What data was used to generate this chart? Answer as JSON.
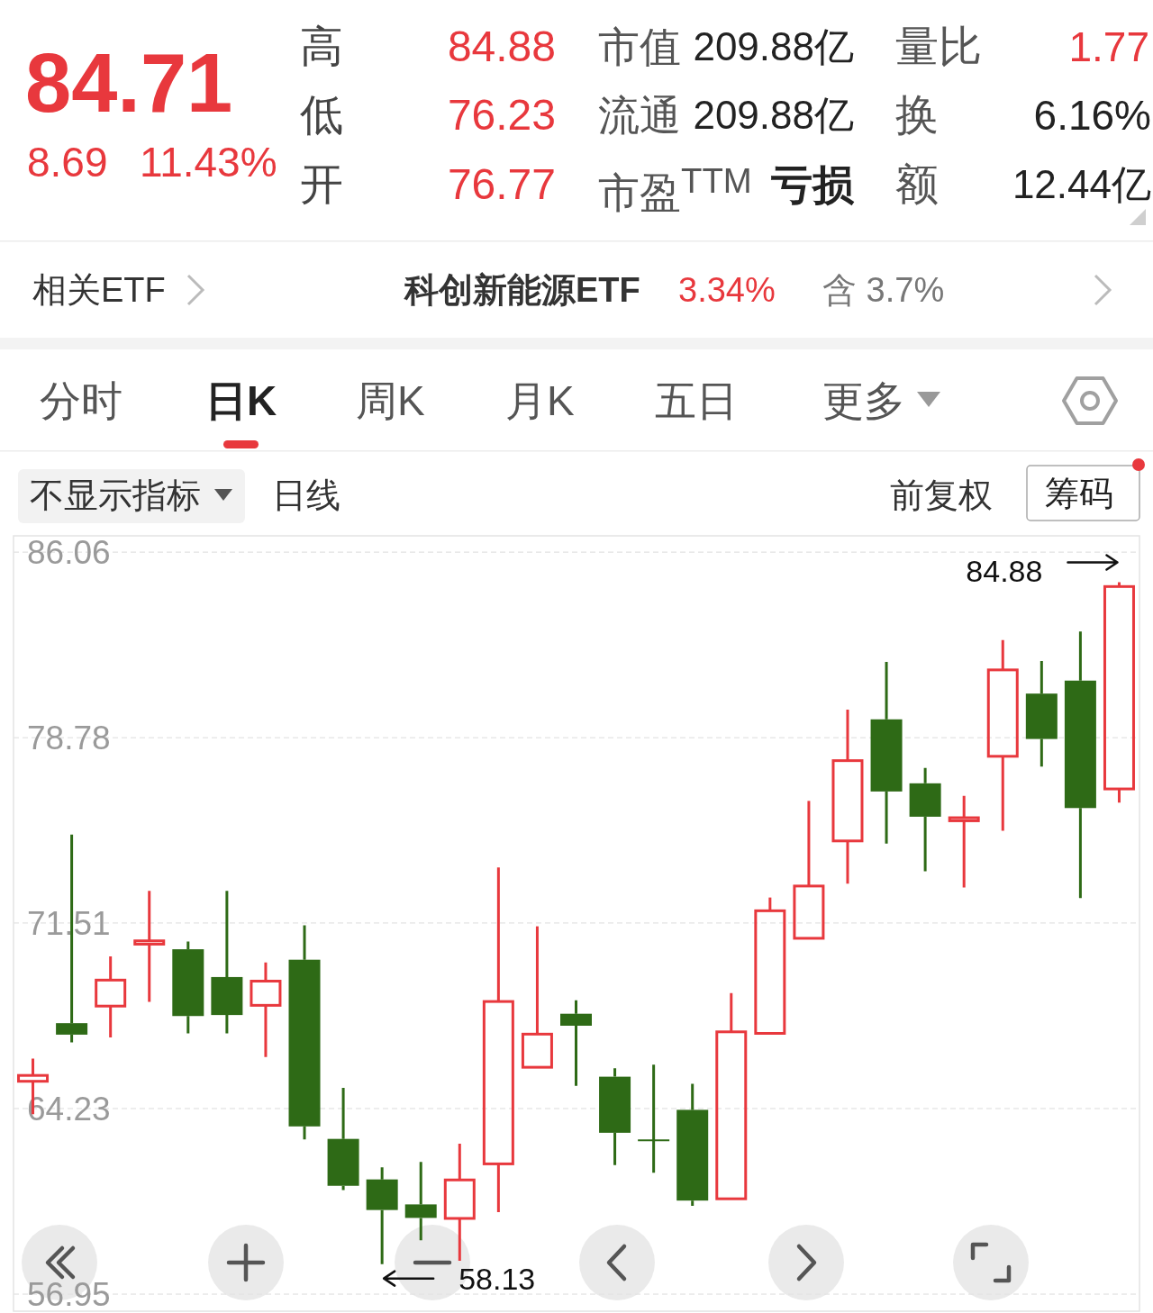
{
  "chart_data": [
    {
      "type": "other",
      "annotations": [
        "84.71",
        "高",
        "84.88",
        "市值",
        "209.88亿",
        "量比",
        "1.77",
        "低",
        "76.23",
        "流通",
        "209.88亿",
        "换",
        "6.16%",
        "8.69",
        "11.43%",
        "开",
        "76.77",
        "市盈$^{TTM}$",
        "亏损",
        "额",
        "12.44亿",
        "相关ETF",
        "科创新能源ETF",
        "3.34%",
        "含 3.7%",
        "分时",
        "日K",
        "周K",
        "月K",
        "五日",
        "更多",
        "不显示指标",
        "日线",
        "前复权",
        "筹码"
      ]
    },
    {
      "type": "candlestick",
      "categories": [
        null,
        null,
        null,
        null,
        null,
        null,
        null,
        null,
        null,
        null,
        null,
        null,
        null,
        null,
        null,
        null,
        null,
        null,
        null,
        null,
        null,
        null,
        null,
        null,
        null,
        null,
        null,
        null,
        null
      ],
      "ohlc": [
        [
          65.3,
          66.19,
          64.01,
          65.53
        ],
        [
          67.58,
          74.98,
          66.83,
          67.13
        ],
        [
          68.25,
          70.2,
          67.02,
          69.27
        ],
        [
          70.68,
          72.77,
          68.42,
          70.81
        ],
        [
          70.48,
          70.78,
          67.18,
          67.86
        ],
        [
          69.39,
          72.77,
          67.18,
          67.9
        ],
        [
          68.28,
          69.96,
          66.25,
          69.23
        ],
        [
          70.07,
          71.42,
          63.02,
          63.53
        ],
        [
          63.04,
          65.04,
          61.03,
          61.2
        ],
        [
          61.45,
          61.92,
          58.13,
          60.25
        ],
        [
          60.47,
          62.14,
          59.06,
          59.94
        ],
        [
          59.92,
          62.85,
          58.26,
          61.43
        ],
        [
          62.06,
          73.69,
          60.17,
          68.43
        ],
        [
          65.85,
          71.38,
          65.85,
          67.15
        ],
        [
          67.95,
          68.48,
          65.12,
          67.48
        ],
        [
          65.48,
          65.81,
          62.01,
          63.28
        ],
        [
          62.98,
          65.95,
          61.71,
          62.98
        ],
        [
          64.18,
          65.2,
          60.41,
          60.62
        ],
        [
          60.69,
          68.76,
          60.69,
          67.24
        ],
        [
          67.18,
          72.51,
          67.18,
          71.99
        ],
        [
          70.91,
          76.3,
          70.91,
          72.96
        ],
        [
          74.73,
          79.88,
          73.05,
          77.88
        ],
        [
          79.5,
          81.75,
          74.63,
          76.67
        ],
        [
          76.99,
          77.59,
          73.54,
          75.68
        ],
        [
          75.52,
          76.5,
          72.9,
          75.64
        ],
        [
          78.05,
          82.61,
          75.13,
          81.44
        ],
        [
          80.51,
          81.79,
          77.65,
          78.73
        ],
        [
          81.02,
          82.95,
          72.49,
          76.02
        ],
        [
          76.77,
          84.88,
          76.23,
          84.71
        ]
      ],
      "colors": [
        "#e8383d",
        "#2e6a16",
        "#e8383d",
        "#e8383d",
        "#2e6a16",
        "#2e6a16",
        "#e8383d",
        "#2e6a16",
        "#2e6a16",
        "#2e6a16",
        "#2e6a16",
        "#e8383d",
        "#e8383d",
        "#e8383d",
        "#2e6a16",
        "#2e6a16",
        "#2e6a16",
        "#2e6a16",
        "#e8383d",
        "#e8383d",
        "#e8383d",
        "#e8383d",
        "#2e6a16",
        "#2e6a16",
        "#e8383d",
        "#e8383d",
        "#2e6a16",
        "#2e6a16",
        "#e8383d"
      ],
      "ylim": [
        56.28,
        86.7
      ],
      "yticks": [
        56.95,
        64.23,
        71.51,
        78.78,
        86.06
      ],
      "grid": "y",
      "annotations": [
        "84.88",
        "58.13"
      ]
    }
  ]
}
